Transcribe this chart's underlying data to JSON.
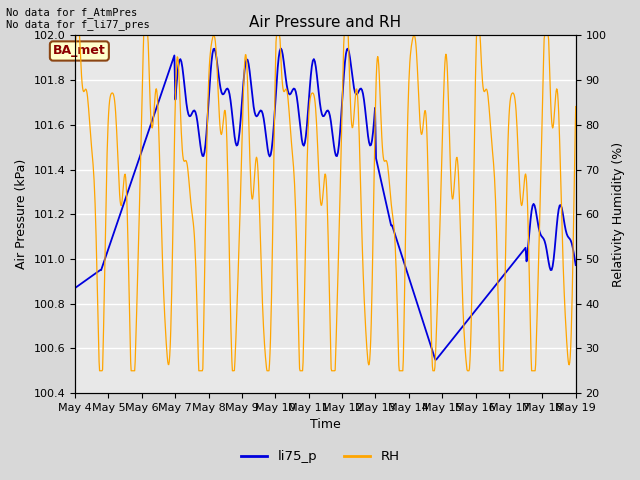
{
  "title": "Air Pressure and RH",
  "xlabel": "Time",
  "ylabel_left": "Air Pressure (kPa)",
  "ylabel_right": "Relativity Humidity (%)",
  "annotation_line1": "No data for f_AtmPres",
  "annotation_line2": "No data for f_li77_pres",
  "box_label": "BA_met",
  "legend_labels": [
    "li75_p",
    "RH"
  ],
  "line_color_blue": "#0000dd",
  "line_color_orange": "#FFA500",
  "ylim_left": [
    100.4,
    102.0
  ],
  "ylim_right": [
    20,
    100
  ],
  "yticks_left": [
    100.4,
    100.6,
    100.8,
    101.0,
    101.2,
    101.4,
    101.6,
    101.8,
    102.0
  ],
  "yticks_right": [
    20,
    30,
    40,
    50,
    60,
    70,
    80,
    90,
    100
  ],
  "xtick_labels": [
    "May 4",
    "May 5",
    "May 6",
    "May 7",
    "May 8",
    "May 9",
    "May 10",
    "May 11",
    "May 12",
    "May 13",
    "May 14",
    "May 15",
    "May 16",
    "May 17",
    "May 18",
    "May 19"
  ],
  "bg_color": "#d8d8d8",
  "plot_bg_color": "#e8e8e8",
  "grid_color": "#ffffff"
}
